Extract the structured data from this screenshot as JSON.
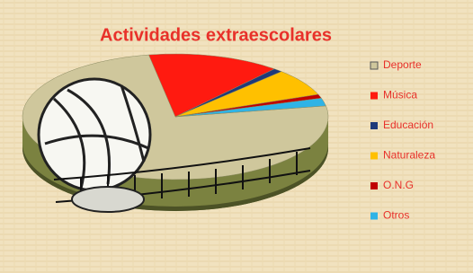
{
  "chart_data": {
    "type": "pie",
    "title": "Actividades extraescolares",
    "categories": [
      "Deporte",
      "Música",
      "Educación",
      "Naturaleza",
      "O.N.G",
      "Otros"
    ],
    "values": [
      75,
      14,
      1,
      7,
      1,
      2
    ],
    "colors": [
      "#cfc79c",
      "#ff1a10",
      "#1f3a7a",
      "#ffc000",
      "#c00000",
      "#2fb3e6"
    ],
    "legend": "right"
  }
}
